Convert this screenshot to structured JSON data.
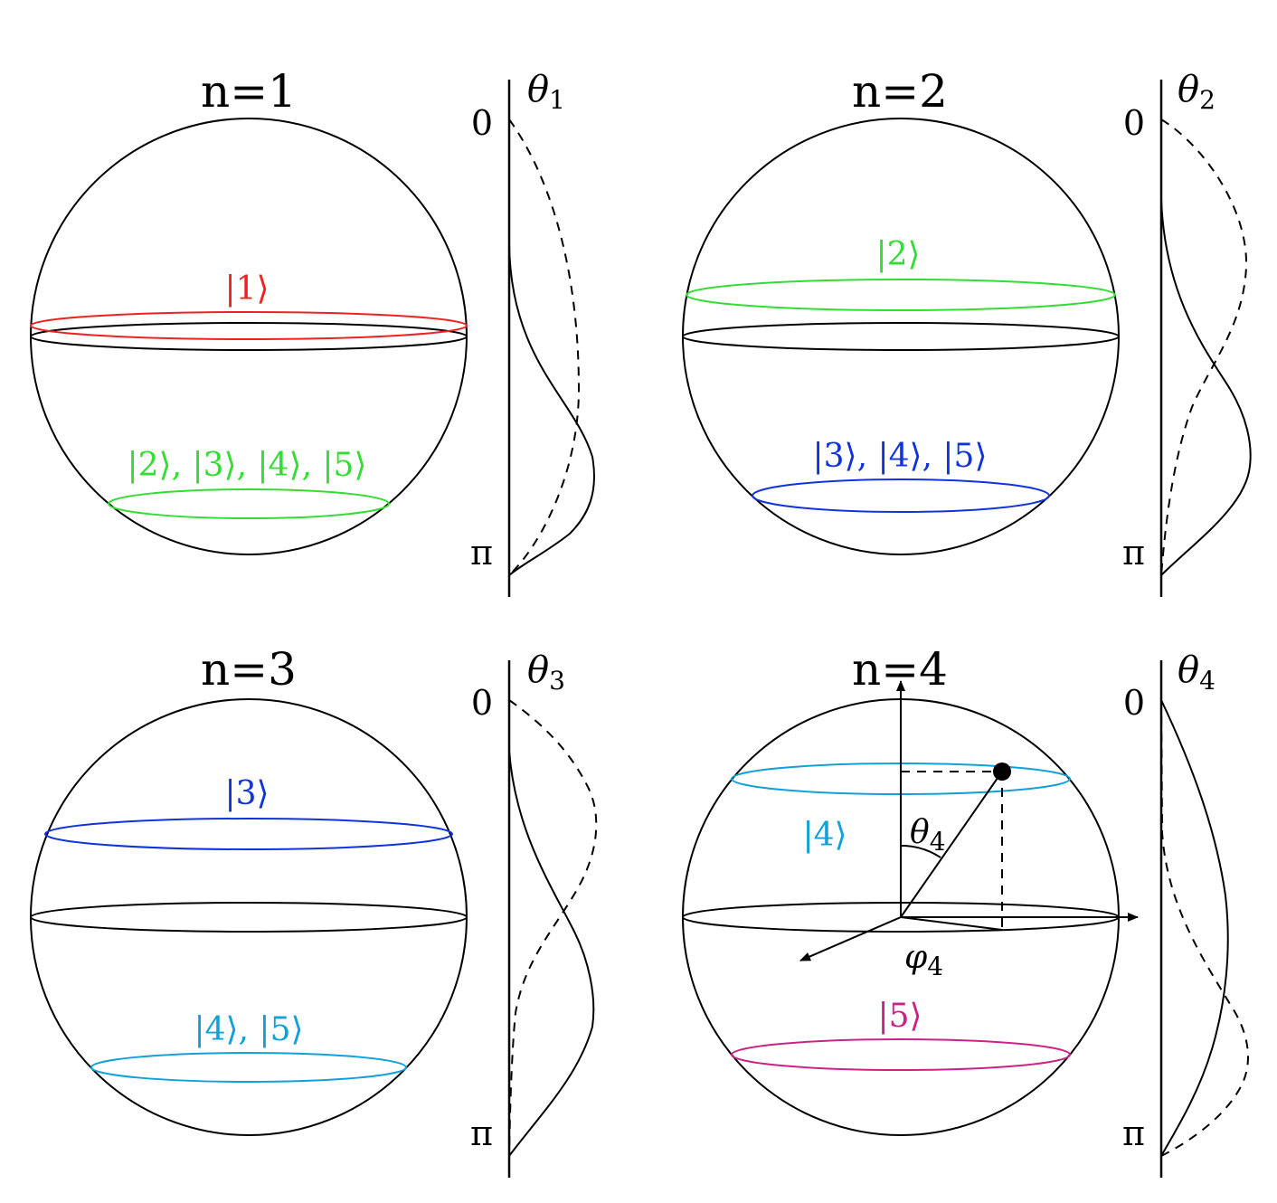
{
  "colors": {
    "n1": "#ee2222",
    "n2": "#33dd33",
    "n3": "#1133dd",
    "n4": "#11a0d8",
    "n5": "#cc2288",
    "equator": "#000000"
  },
  "panels": [
    {
      "title": "n=1",
      "axis_label": "θ",
      "axis_sub": "1",
      "tick_top": "0",
      "tick_bottom": "π",
      "rings": [
        {
          "label": "|1⟩",
          "color_key": "n1"
        },
        {
          "label": "|2⟩, |3⟩, |4⟩, |5⟩",
          "color_key": "n2"
        }
      ]
    },
    {
      "title": "n=2",
      "axis_label": "θ",
      "axis_sub": "2",
      "tick_top": "0",
      "tick_bottom": "π",
      "rings": [
        {
          "label": "|2⟩",
          "color_key": "n2"
        },
        {
          "label": "|3⟩, |4⟩, |5⟩",
          "color_key": "n3"
        }
      ]
    },
    {
      "title": "n=3",
      "axis_label": "θ",
      "axis_sub": "3",
      "tick_top": "0",
      "tick_bottom": "π",
      "rings": [
        {
          "label": "|3⟩",
          "color_key": "n3"
        },
        {
          "label": "|4⟩, |5⟩",
          "color_key": "n4"
        }
      ]
    },
    {
      "title": "n=4",
      "axis_label": "θ",
      "axis_sub": "4",
      "tick_top": "0",
      "tick_bottom": "π",
      "rings": [
        {
          "label": "|4⟩",
          "color_key": "n4"
        },
        {
          "label": "|5⟩",
          "color_key": "n5"
        }
      ],
      "polar_angle_label": "θ",
      "polar_angle_sub": "4",
      "azimuth_label": "φ",
      "azimuth_sub": "4"
    }
  ]
}
